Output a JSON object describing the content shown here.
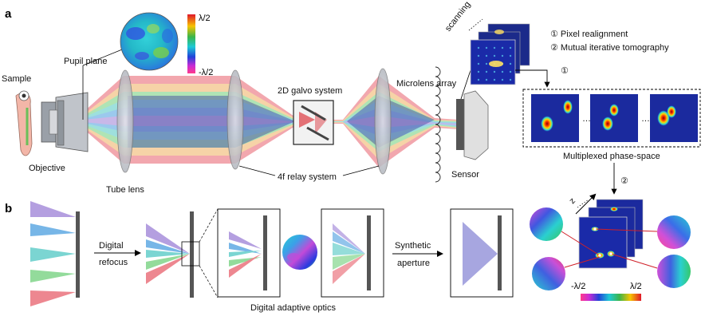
{
  "panels": {
    "a": "a",
    "b": "b"
  },
  "labels": {
    "sample": "Sample",
    "pupil_plane": "Pupil plane",
    "objective": "Objective",
    "tube_lens": "Tube lens",
    "galvo": "2D galvo system",
    "relay": "4f relay system",
    "microlens": "Microlens array",
    "sensor": "Sensor",
    "scanning": "scanning",
    "step1": "① Pixel realignment",
    "step2": "② Mutual iterative tomography",
    "marker1": "①",
    "marker2": "②",
    "multiplexed": "Multiplexed phase-space",
    "digital_refocus_1": "Digital",
    "digital_refocus_2": "refocus",
    "dao": "Digital adaptive optics",
    "synthetic_1": "Synthetic",
    "synthetic_2": "aperture",
    "z_axis": "z"
  },
  "colorbar_top": {
    "max": "λ/2",
    "min": "-λ/2"
  },
  "colorbar_bottom": {
    "min": "-λ/2",
    "max": "λ/2"
  },
  "colors": {
    "beam_red": "#e8606c",
    "beam_green": "#6fcf7a",
    "beam_teal": "#4fc7c3",
    "beam_blue": "#4a9ee0",
    "beam_purple": "#9c7fd6",
    "lens_fill": "#c9ccd2",
    "map_dark_blue": "#1b1f9e"
  }
}
